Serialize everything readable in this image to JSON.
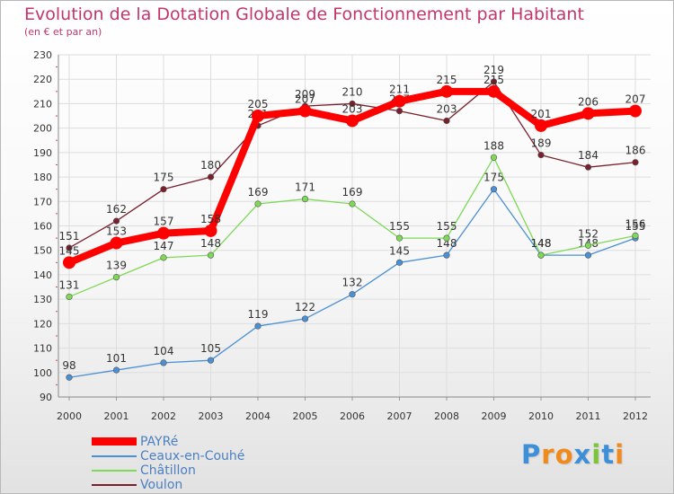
{
  "header": {
    "title": "Evolution de la Dotation Globale de Fonctionnement par Habitant",
    "subtitle": "(en € et par an)"
  },
  "chart_data": {
    "type": "line",
    "title": "Evolution de la Dotation Globale de Fonctionnement par Habitant",
    "subtitle": "(en € et par an)",
    "xlabel": "",
    "ylabel": "",
    "categories": [
      "2000",
      "2001",
      "2002",
      "2003",
      "2004",
      "2005",
      "2006",
      "2007",
      "2008",
      "2009",
      "2010",
      "2011",
      "2012"
    ],
    "ylim": [
      90,
      230
    ],
    "yticks": [
      90,
      100,
      110,
      120,
      130,
      140,
      150,
      160,
      170,
      180,
      190,
      200,
      210,
      220,
      230
    ],
    "grid": true,
    "legend_position": "bottom-left",
    "series": [
      {
        "name": "Voulon",
        "color": "#7a1f2b",
        "values": [
          151,
          162,
          175,
          180,
          201,
          209,
          210,
          207,
          203,
          219,
          189,
          184,
          186
        ]
      },
      {
        "name": "Ceaux-en-Couhé",
        "color": "#4a90d6",
        "values": [
          98,
          101,
          104,
          105,
          119,
          122,
          132,
          145,
          148,
          175,
          148,
          148,
          155
        ]
      },
      {
        "name": "Châtillon",
        "color": "#7ed957",
        "values": [
          131,
          139,
          147,
          148,
          169,
          171,
          169,
          155,
          155,
          188,
          148,
          152,
          156
        ]
      },
      {
        "name": "PAYRé",
        "color": "#ff0000",
        "values": [
          145,
          153,
          157,
          158,
          205,
          207,
          203,
          211,
          215,
          215,
          201,
          206,
          207
        ]
      }
    ]
  },
  "legend": {
    "items": [
      {
        "label": "PAYRé",
        "color": "#ff0000"
      },
      {
        "label": "Ceaux-en-Couhé",
        "color": "#4a90d6"
      },
      {
        "label": "Châtillon",
        "color": "#7ed957"
      },
      {
        "label": "Voulon",
        "color": "#7a1f2b"
      }
    ]
  },
  "logo": {
    "text": "Proxiti",
    "letters": [
      {
        "ch": "P",
        "color": "#3d8fd8"
      },
      {
        "ch": "r",
        "color": "#f08a1c"
      },
      {
        "ch": "o",
        "color": "#f08a1c"
      },
      {
        "ch": "x",
        "color": "#3d8fd8"
      },
      {
        "ch": "i",
        "color": "#7cc43a"
      },
      {
        "ch": "t",
        "color": "#3d8fd8"
      },
      {
        "ch": "i",
        "color": "#f08a1c"
      }
    ]
  }
}
